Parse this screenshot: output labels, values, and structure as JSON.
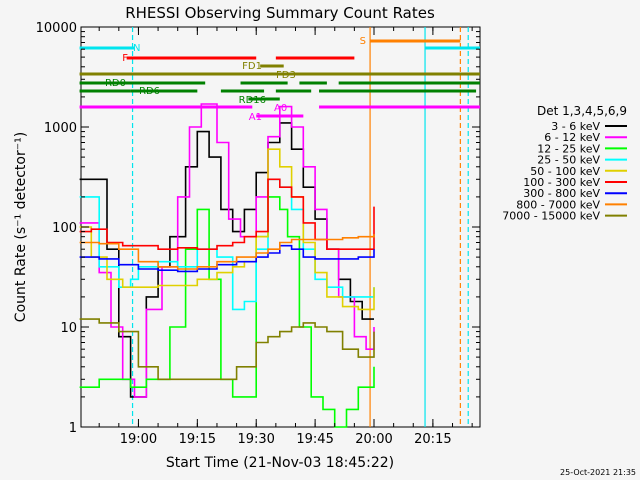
{
  "chart_data": {
    "type": "line",
    "title": "RHESSI Observing Summary Count Rates",
    "xlabel": "Start Time (21-Nov-03 18:45:22)",
    "ylabel": "Count Rate (s⁻¹ detector⁻¹)",
    "footer": "25-Oct-2021 21:35",
    "y_scale": "log",
    "ylim": [
      1,
      10000
    ],
    "xlim": [
      "18:45:22",
      "20:27:00"
    ],
    "x_ticks": [
      "19:00",
      "19:15",
      "19:30",
      "19:45",
      "20:00",
      "20:15"
    ],
    "y_ticks": [
      "1",
      "10",
      "100",
      "1000",
      "10000"
    ],
    "legend_title": "Det 1,3,4,5,6,9",
    "legend_position": "right",
    "series": [
      {
        "name": "3 - 6 keV",
        "color": "#000000",
        "x": [
          "18:45",
          "18:52",
          "18:55",
          "18:58",
          "19:00",
          "19:02",
          "19:05",
          "19:08",
          "19:12",
          "19:15",
          "19:18",
          "19:21",
          "19:24",
          "19:27",
          "19:30",
          "19:33",
          "19:36",
          "19:39",
          "19:42",
          "19:45",
          "19:48",
          "19:51",
          "19:54",
          "19:57",
          "20:00"
        ],
        "y": [
          300,
          60,
          8,
          2,
          2,
          20,
          40,
          80,
          400,
          900,
          500,
          150,
          90,
          150,
          350,
          700,
          1100,
          600,
          250,
          120,
          60,
          30,
          18,
          12,
          12
        ]
      },
      {
        "name": "6 - 12 keV",
        "color": "#ff00ff",
        "x": [
          "18:45",
          "18:50",
          "18:53",
          "18:56",
          "18:59",
          "19:02",
          "19:06",
          "19:10",
          "19:13",
          "19:16",
          "19:20",
          "19:23",
          "19:26",
          "19:30",
          "19:33",
          "19:36",
          "19:39",
          "19:42",
          "19:45",
          "19:48",
          "19:51",
          "19:55",
          "19:58",
          "20:00"
        ],
        "y": [
          110,
          35,
          10,
          3,
          2,
          15,
          40,
          200,
          1000,
          1700,
          700,
          120,
          80,
          200,
          800,
          1600,
          1000,
          400,
          150,
          60,
          20,
          8,
          6,
          10
        ]
      },
      {
        "name": "12 - 25 keV",
        "color": "#00ff00",
        "x": [
          "18:45",
          "18:50",
          "18:55",
          "18:58",
          "19:02",
          "19:08",
          "19:12",
          "19:15",
          "19:18",
          "19:21",
          "19:24",
          "19:28",
          "19:30",
          "19:33",
          "19:36",
          "19:38",
          "19:41",
          "19:44",
          "19:47",
          "19:50",
          "19:53",
          "19:56",
          "20:00"
        ],
        "y": [
          2.5,
          3,
          3,
          2.5,
          3,
          10,
          60,
          150,
          30,
          3,
          2,
          2,
          80,
          200,
          150,
          80,
          10,
          2,
          1.5,
          1,
          1.5,
          2.5,
          4
        ]
      },
      {
        "name": "25 - 50 keV",
        "color": "#00ffff",
        "x": [
          "18:45",
          "18:50",
          "18:55",
          "18:58",
          "19:00",
          "19:05",
          "19:10",
          "19:15",
          "19:20",
          "19:24",
          "19:27",
          "19:30",
          "19:33",
          "19:36",
          "19:39",
          "19:42",
          "19:45",
          "19:48",
          "19:52",
          "19:56",
          "20:00"
        ],
        "y": [
          200,
          40,
          25,
          30,
          40,
          45,
          40,
          60,
          50,
          15,
          18,
          60,
          300,
          250,
          150,
          60,
          30,
          25,
          20,
          20,
          25
        ]
      },
      {
        "name": "50 - 100 keV",
        "color": "#e0d000",
        "x": [
          "18:45",
          "18:48",
          "18:52",
          "18:56",
          "19:00",
          "19:05",
          "19:10",
          "19:15",
          "19:20",
          "19:24",
          "19:27",
          "19:30",
          "19:33",
          "19:36",
          "19:39",
          "19:42",
          "19:45",
          "19:48",
          "19:52",
          "19:56",
          "20:00"
        ],
        "y": [
          100,
          50,
          30,
          25,
          25,
          26,
          26,
          30,
          35,
          40,
          45,
          80,
          600,
          400,
          200,
          70,
          35,
          20,
          16,
          15,
          25
        ]
      },
      {
        "name": "100 - 300 keV",
        "color": "#ff0000",
        "x": [
          "18:45",
          "18:48",
          "18:52",
          "18:56",
          "19:00",
          "19:05",
          "19:10",
          "19:15",
          "19:20",
          "19:24",
          "19:27",
          "19:30",
          "19:33",
          "19:36",
          "19:39",
          "19:42",
          "19:45",
          "19:48",
          "19:52",
          "19:56",
          "20:00"
        ],
        "y": [
          90,
          95,
          70,
          65,
          65,
          60,
          62,
          60,
          65,
          70,
          80,
          90,
          300,
          250,
          200,
          110,
          75,
          60,
          60,
          60,
          160
        ]
      },
      {
        "name": "300 - 800 keV",
        "color": "#0000ff",
        "x": [
          "18:45",
          "18:50",
          "18:55",
          "19:00",
          "19:05",
          "19:10",
          "19:15",
          "19:20",
          "19:25",
          "19:30",
          "19:33",
          "19:36",
          "19:39",
          "19:42",
          "19:45",
          "19:48",
          "19:52",
          "19:56",
          "20:00"
        ],
        "y": [
          50,
          48,
          42,
          38,
          37,
          36,
          38,
          42,
          45,
          50,
          55,
          65,
          60,
          50,
          48,
          48,
          48,
          50,
          60
        ]
      },
      {
        "name": "800 - 7000 keV",
        "color": "#ff8000",
        "x": [
          "18:45",
          "18:50",
          "18:55",
          "19:00",
          "19:05",
          "19:10",
          "19:15",
          "19:20",
          "19:25",
          "19:30",
          "19:33",
          "19:36",
          "19:39",
          "19:42",
          "19:45",
          "19:48",
          "19:52",
          "19:56",
          "20:00"
        ],
        "y": [
          70,
          68,
          60,
          45,
          40,
          38,
          40,
          45,
          50,
          55,
          60,
          70,
          75,
          75,
          75,
          75,
          78,
          80,
          85
        ]
      },
      {
        "name": "7000 - 15000 keV",
        "color": "#808000",
        "x": [
          "18:45",
          "18:50",
          "18:55",
          "19:00",
          "19:05",
          "19:10",
          "19:15",
          "19:20",
          "19:25",
          "19:30",
          "19:33",
          "19:36",
          "19:39",
          "19:42",
          "19:45",
          "19:48",
          "19:52",
          "19:56",
          "20:00"
        ],
        "y": [
          12,
          11,
          9,
          4,
          3,
          3,
          3,
          3,
          4,
          7,
          8,
          9,
          10,
          11,
          10,
          9,
          6,
          5,
          9
        ]
      }
    ],
    "state_bars": [
      {
        "label": "N",
        "color": "#00e5ee",
        "segments": [
          [
            "18:45",
            "18:59"
          ],
          [
            "20:13",
            "20:27"
          ]
        ]
      },
      {
        "label": "F",
        "color": "#ff0000",
        "segments": [
          [
            "18:57",
            "19:30"
          ],
          [
            "19:35",
            "19:55"
          ]
        ]
      },
      {
        "label": "S",
        "color": "#ff8000",
        "segments": [
          [
            "19:59",
            "20:22"
          ]
        ]
      },
      {
        "label": "FD1",
        "color": "#808000",
        "segments": [
          [
            "19:31",
            "19:37"
          ]
        ]
      },
      {
        "label": "FD3",
        "color": "#808000",
        "segments": [
          [
            "18:45",
            "20:27"
          ]
        ]
      },
      {
        "label": "RD0",
        "color": "#008000",
        "segments": [
          [
            "18:45",
            "19:17"
          ],
          [
            "19:26",
            "19:38"
          ],
          [
            "19:41",
            "19:48"
          ],
          [
            "19:51",
            "20:27"
          ]
        ]
      },
      {
        "label": "RD6",
        "color": "#008000",
        "segments": [
          [
            "18:45",
            "18:58"
          ],
          [
            "18:58",
            "19:15"
          ],
          [
            "19:21",
            "19:32"
          ],
          [
            "19:35",
            "19:44"
          ],
          [
            "19:46",
            "20:26"
          ]
        ]
      },
      {
        "label": "RD16",
        "color": "#008000",
        "segments": [
          [
            "19:28",
            "19:36"
          ]
        ]
      },
      {
        "label": "A0",
        "color": "#ff00ff",
        "segments": [
          [
            "18:45",
            "19:29"
          ],
          [
            "19:46",
            "20:27"
          ]
        ]
      },
      {
        "label": "A1",
        "color": "#ff00ff",
        "segments": [
          [
            "19:30",
            "19:42"
          ]
        ]
      }
    ],
    "markers": [
      {
        "time": "18:58:30",
        "color": "#00e5ee",
        "style": "dashed"
      },
      {
        "time": "19:59:00",
        "color": "#ff8000",
        "style": "solid"
      },
      {
        "time": "20:13:00",
        "color": "#00e5ee",
        "style": "solid"
      },
      {
        "time": "20:22:00",
        "color": "#ff8000",
        "style": "dashed"
      },
      {
        "time": "20:24:00",
        "color": "#00e5ee",
        "style": "dashed"
      }
    ]
  }
}
